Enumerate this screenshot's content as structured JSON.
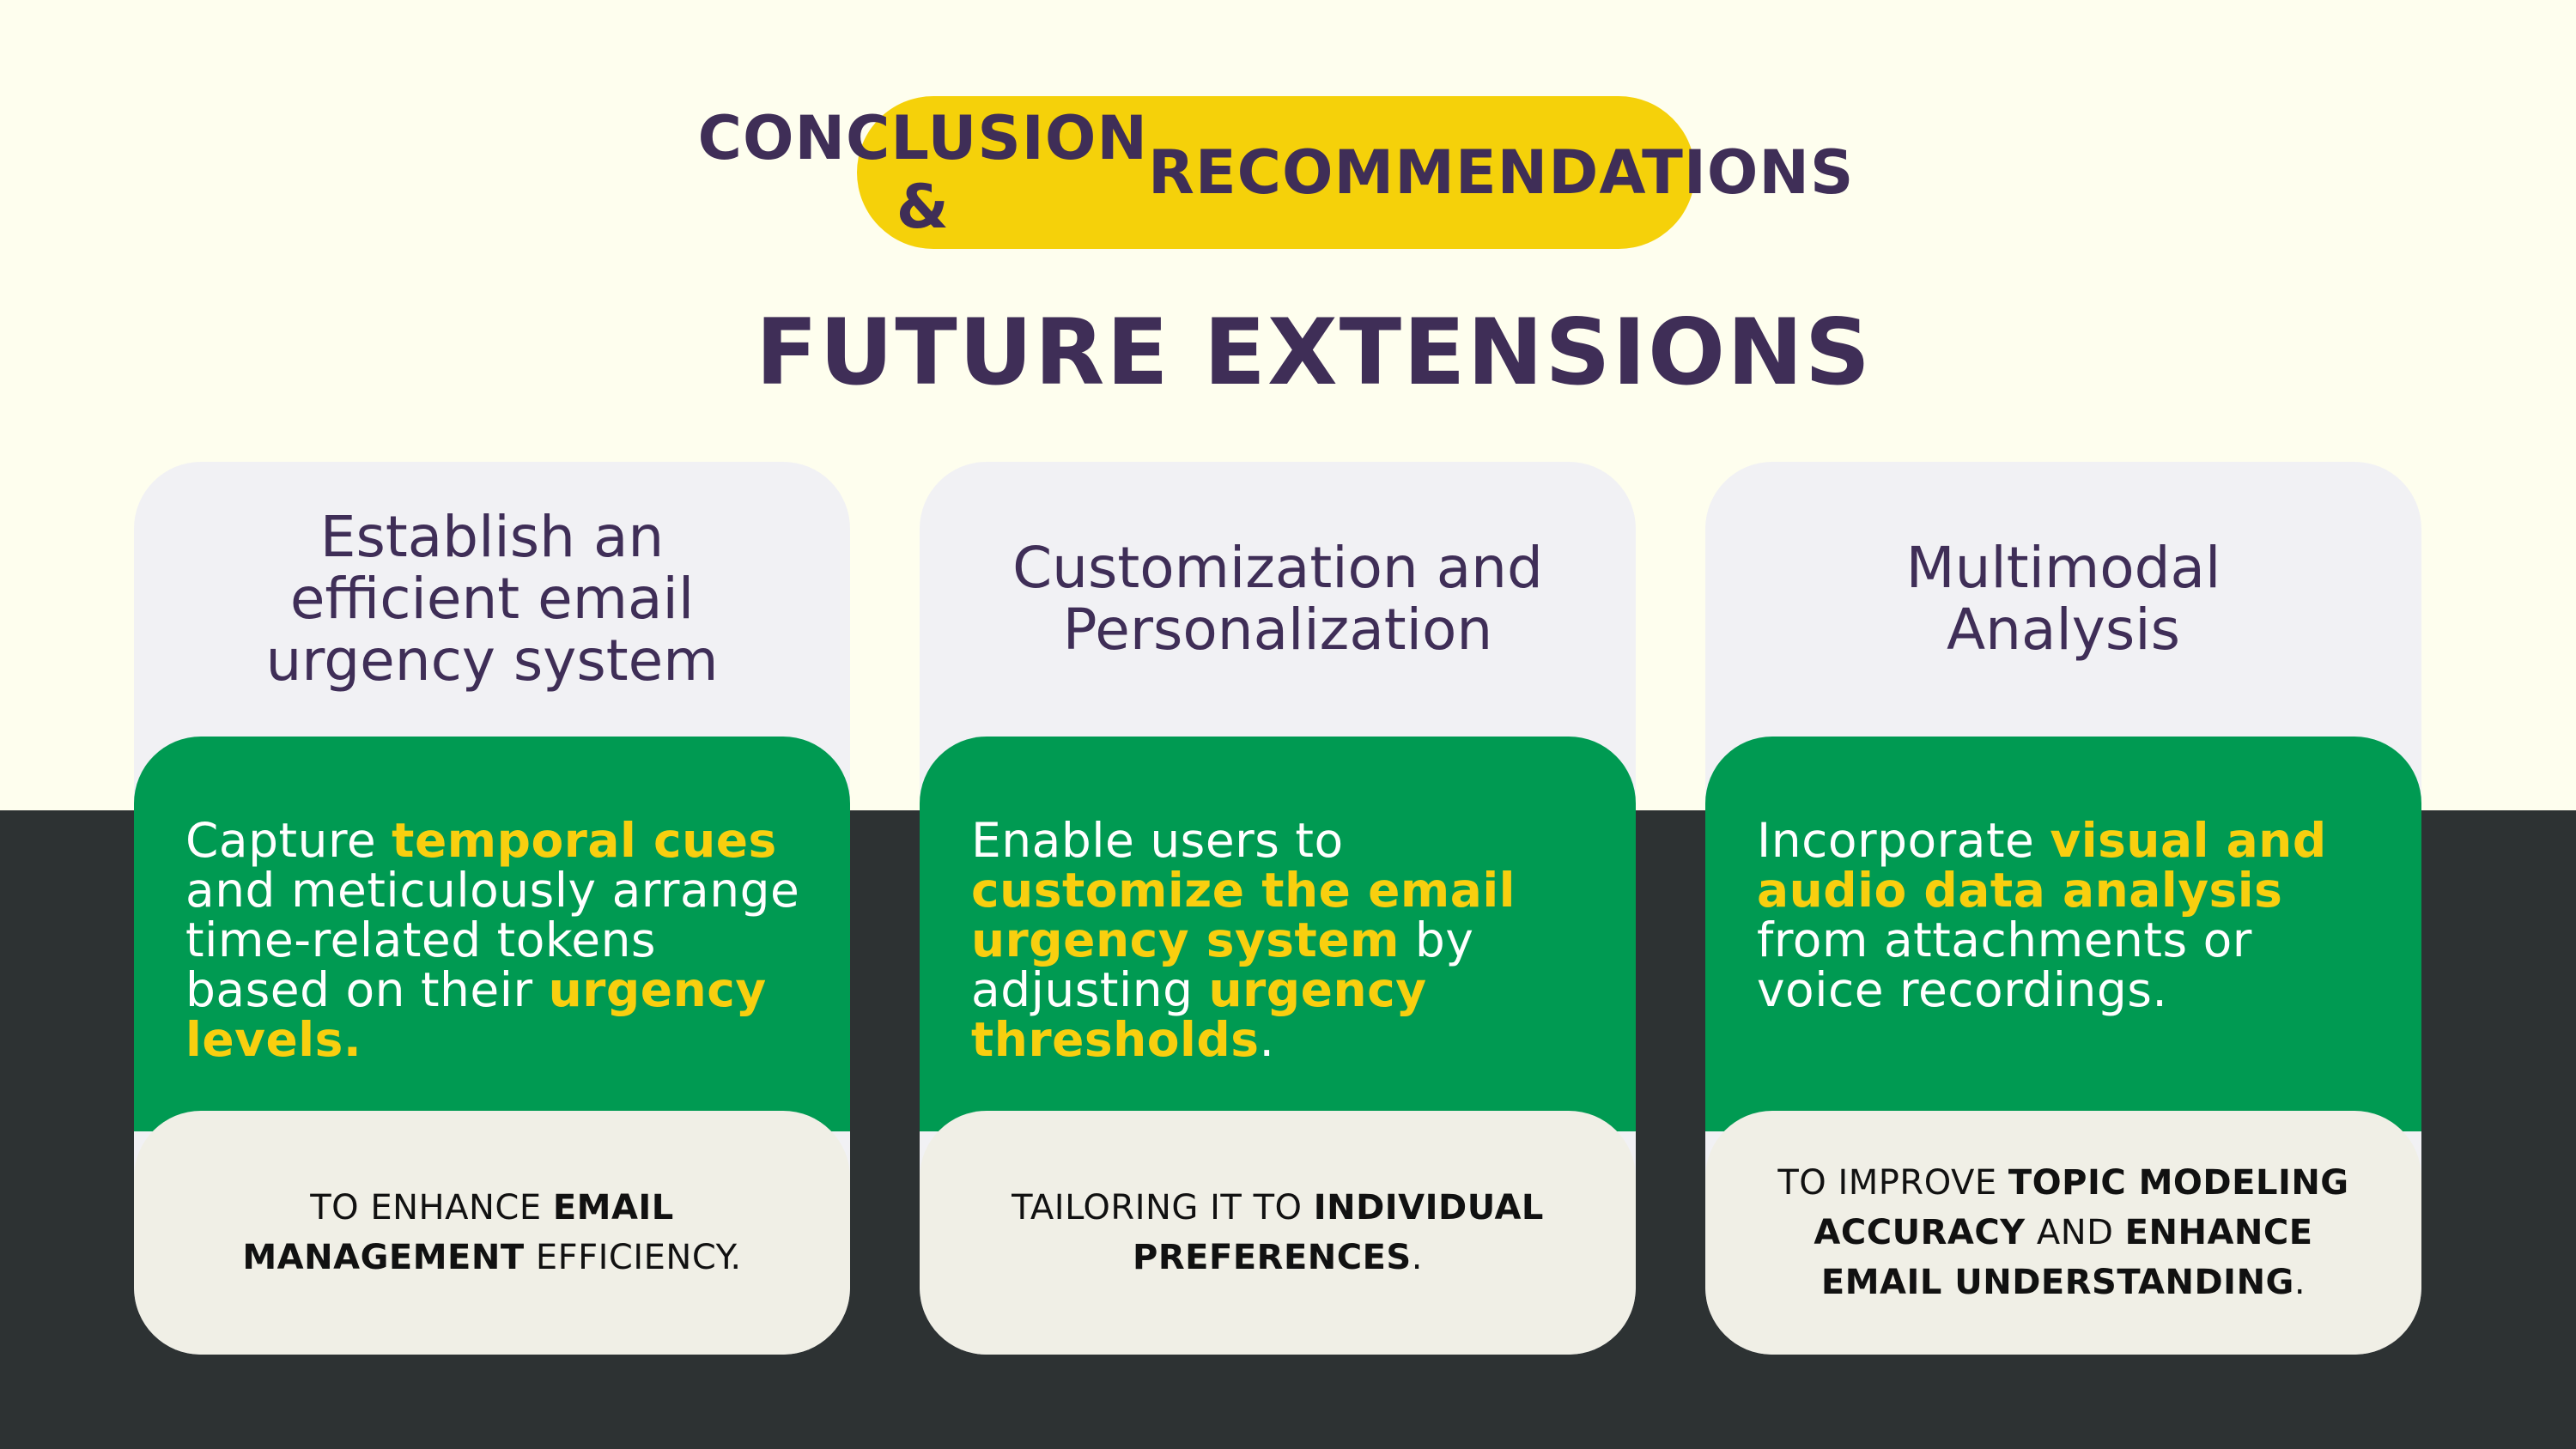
{
  "header": {
    "badge_line1": "CONCLUSION &",
    "badge_line2": "RECOMMENDATIONS",
    "title": "FUTURE EXTENSIONS"
  },
  "colors": {
    "cream": "#fefeee",
    "dark": "#2d3233",
    "yellow": "#f5d10a",
    "purple": "#3f2e57",
    "green": "#009a52",
    "highlight": "#f8cf0f"
  },
  "columns": [
    {
      "heading": "Establish an\nefficient email\nurgency system",
      "body": [
        {
          "t": "Capture ",
          "h": false
        },
        {
          "t": "temporal cues",
          "h": true
        },
        {
          "t": " and meticulously arrange time-related tokens based on their ",
          "h": false
        },
        {
          "t": "urgency levels.",
          "h": true
        }
      ],
      "footer": [
        {
          "t": "TO ENHANCE ",
          "b": false
        },
        {
          "t": "EMAIL MANAGEMENT",
          "b": true
        },
        {
          "t": " EFFICIENCY.",
          "b": false
        }
      ]
    },
    {
      "heading": "Customization and\nPersonalization",
      "body": [
        {
          "t": "Enable users to ",
          "h": false
        },
        {
          "t": "customize the email urgency system",
          "h": true
        },
        {
          "t": " by adjusting ",
          "h": false
        },
        {
          "t": "urgency thresholds",
          "h": true
        },
        {
          "t": ".",
          "h": false
        }
      ],
      "footer": [
        {
          "t": "TAILORING IT TO ",
          "b": false
        },
        {
          "t": "INDIVIDUAL PREFERENCES",
          "b": true
        },
        {
          "t": ".",
          "b": false
        }
      ]
    },
    {
      "heading": "Multimodal\nAnalysis",
      "body": [
        {
          "t": "Incorporate ",
          "h": false
        },
        {
          "t": "visual and audio data analysis",
          "h": true
        },
        {
          "t": " from attachments or voice recordings.",
          "h": false
        }
      ],
      "footer": [
        {
          "t": "TO IMPROVE ",
          "b": false
        },
        {
          "t": "TOPIC MODELING ACCURACY",
          "b": true
        },
        {
          "t": " AND ",
          "b": false
        },
        {
          "t": "ENHANCE EMAIL UNDERSTANDING",
          "b": true
        },
        {
          "t": ".",
          "b": false
        }
      ]
    }
  ]
}
